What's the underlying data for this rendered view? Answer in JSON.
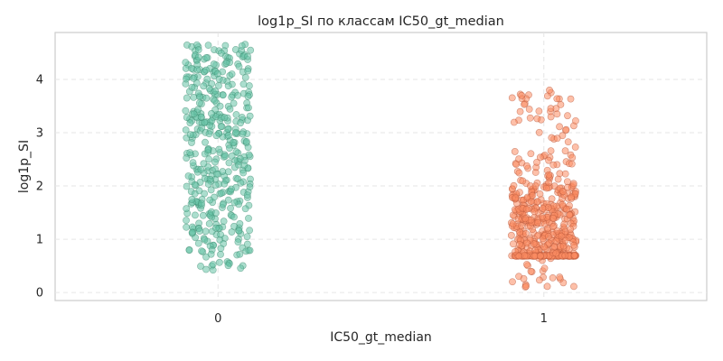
{
  "chart_data": {
    "type": "scatter",
    "title": "log1p_SI по классам IC50_gt_median",
    "xlabel": "IC50_gt_median",
    "ylabel": "log1p_SI",
    "categories": [
      "0",
      "1"
    ],
    "x_range": [
      -0.5,
      1.5
    ],
    "ylim": [
      -0.15,
      4.88
    ],
    "yticks": [
      0,
      1,
      2,
      3,
      4
    ],
    "grid": true,
    "legend": "none",
    "jitter_width": 0.1,
    "series": [
      {
        "category": "0",
        "color": "#66c2a5",
        "edge_color": "#3d8a70",
        "count": 420,
        "y_min": 0.35,
        "y_max": 4.66,
        "distribution": "approximately uniform between 0.7 and 4.6, a few points down to 0.35"
      },
      {
        "category": "1",
        "color": "#fc8d62",
        "edge_color": "#b8573a",
        "count": 560,
        "y_min": 0.07,
        "y_max": 3.8,
        "dense_band_at": 0.69,
        "distribution": "concentrated between 0.7 and 2.0 with a dense band at 0.69, sparse tail up to 3.8"
      }
    ]
  }
}
